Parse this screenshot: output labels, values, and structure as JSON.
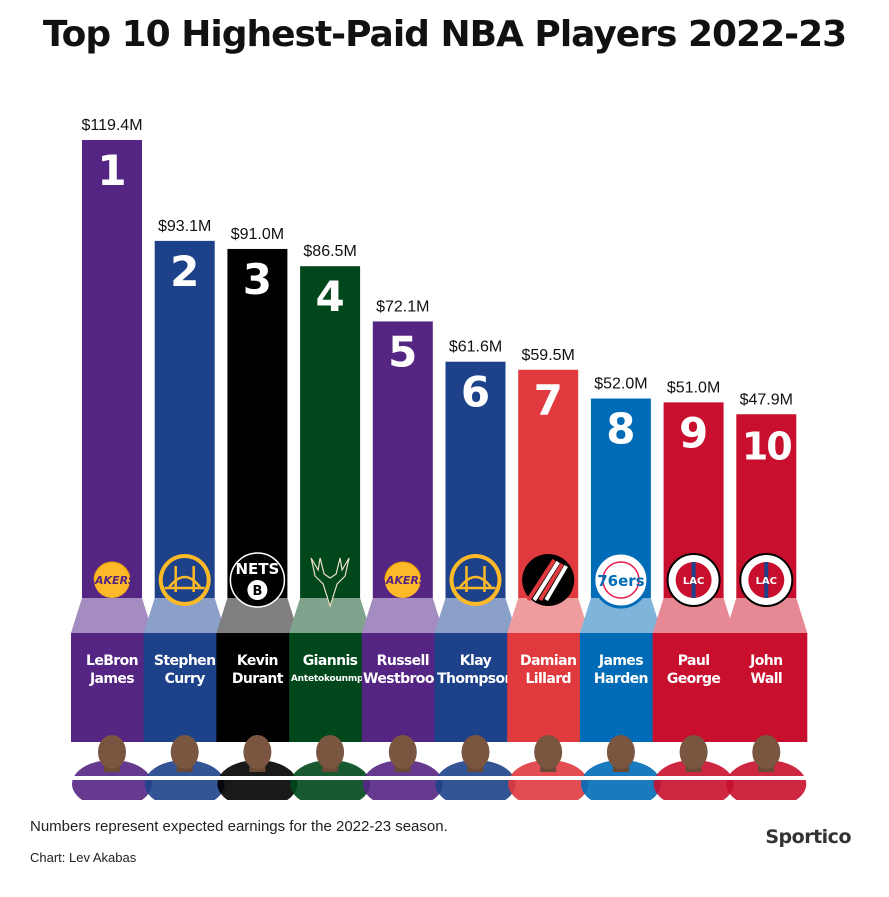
{
  "title": "Top 10 Highest-Paid NBA Players 2022-23",
  "footnote": "Numbers represent expected earnings for the 2022-23 season.",
  "credit": "Chart: Lev Akabas",
  "brand": "Sportico",
  "chart_data": {
    "type": "bar",
    "title": "Top 10 Highest-Paid NBA Players 2022-23",
    "xlabel": "",
    "ylabel": "",
    "unit": "$M",
    "ylim": [
      0,
      119.4
    ],
    "grid": false,
    "categories": [
      "1",
      "2",
      "3",
      "4",
      "5",
      "6",
      "7",
      "8",
      "9",
      "10"
    ],
    "values": [
      119.4,
      93.1,
      91.0,
      86.5,
      72.1,
      61.6,
      59.5,
      52.0,
      51.0,
      47.9
    ],
    "value_labels": [
      "$119.4M",
      "$93.1M",
      "$91.0M",
      "$86.5M",
      "$72.1M",
      "$61.6M",
      "$59.5M",
      "$52.0M",
      "$51.0M",
      "$47.9M"
    ],
    "players": [
      {
        "rank": "1",
        "first": "LeBron",
        "last": "James",
        "team_logo": "lakers-logo",
        "bar_color": "#552583",
        "panel_color": "#552583",
        "ribbon_color": "#a48cc1"
      },
      {
        "rank": "2",
        "first": "Stephen",
        "last": "Curry",
        "team_logo": "warriors-logo",
        "bar_color": "#1d428a",
        "panel_color": "#1d428a",
        "ribbon_color": "#8aa0c8"
      },
      {
        "rank": "3",
        "first": "Kevin",
        "last": "Durant",
        "team_logo": "nets-logo",
        "bar_color": "#000000",
        "panel_color": "#000000",
        "ribbon_color": "#7f7f7f"
      },
      {
        "rank": "4",
        "first": "Giannis",
        "last": "Antetokounmpo",
        "team_logo": "bucks-logo",
        "bar_color": "#00471b",
        "panel_color": "#00471b",
        "ribbon_color": "#80a38d"
      },
      {
        "rank": "5",
        "first": "Russell",
        "last": "Westbrook",
        "team_logo": "lakers-logo",
        "bar_color": "#552583",
        "panel_color": "#552583",
        "ribbon_color": "#a48cc1"
      },
      {
        "rank": "6",
        "first": "Klay",
        "last": "Thompson",
        "team_logo": "warriors-logo",
        "bar_color": "#1d428a",
        "panel_color": "#1d428a",
        "ribbon_color": "#8aa0c8"
      },
      {
        "rank": "7",
        "first": "Damian",
        "last": "Lillard",
        "team_logo": "trail-blazers-logo",
        "bar_color": "#e03a3e",
        "panel_color": "#e03a3e",
        "ribbon_color": "#ef9c9e"
      },
      {
        "rank": "8",
        "first": "James",
        "last": "Harden",
        "team_logo": "76ers-logo",
        "bar_color": "#006bb6",
        "panel_color": "#006bb6",
        "ribbon_color": "#7fb4db"
      },
      {
        "rank": "9",
        "first": "Paul",
        "last": "George",
        "team_logo": "clippers-logo",
        "bar_color": "#c8102e",
        "panel_color": "#c8102e",
        "ribbon_color": "#e78895"
      },
      {
        "rank": "10",
        "first": "John",
        "last": "Wall",
        "team_logo": "clippers-logo",
        "bar_color": "#c8102e",
        "panel_color": "#c8102e",
        "ribbon_color": "#e78895"
      }
    ],
    "logo_text": {
      "lakers": "LAKERS",
      "nets": "NETS",
      "sixers": "76ers",
      "clippers": "LAC"
    }
  }
}
